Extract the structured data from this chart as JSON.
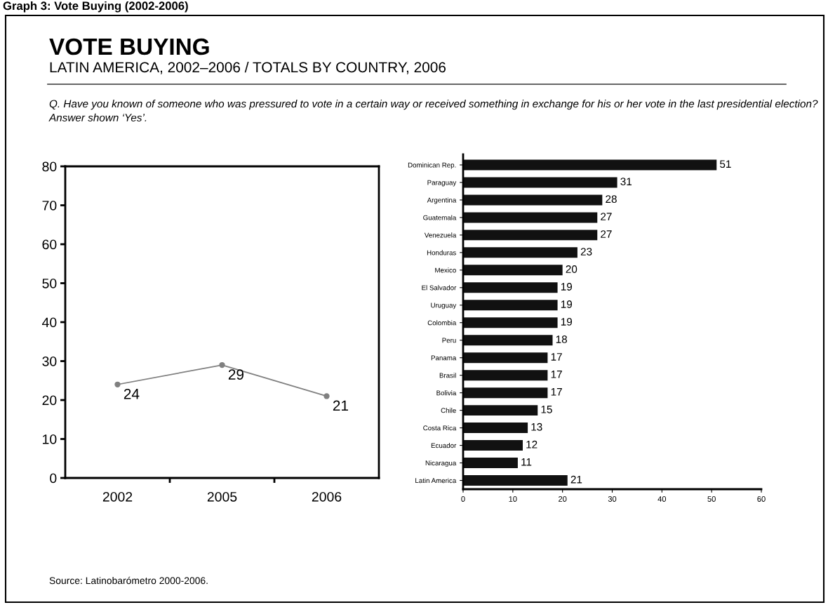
{
  "chart_data": [
    {
      "type": "line",
      "title": "VOTE BUYING",
      "subtitle": "LATIN AMERICA, 2002–2006 / TOTALS BY COUNTRY, 2006",
      "annotations": [
        "Graph 3: Vote Buying (2002-2006)",
        "Q. Have you known of someone who was pressured to vote in a certain way or received something in exchange for his or her vote in the last presidential election? Answer shown ‘Yes’.",
        "Source: Latinobarómetro 2000-2006."
      ],
      "categories": [
        "2002",
        "2005",
        "2006"
      ],
      "series": [
        {
          "color": "#808080",
          "values": [
            24,
            29,
            21
          ]
        }
      ],
      "ylim": [
        0,
        80
      ],
      "yticks": [
        0,
        10,
        20,
        30,
        40,
        50,
        60,
        70,
        80
      ],
      "marker": "circle",
      "line_style": "solid",
      "data_labels": true,
      "grid": false
    },
    {
      "type": "bar",
      "orientation": "horizontal",
      "categories": [
        "Dominican Rep.",
        "Paraguay",
        "Argentina",
        "Guatemala",
        "Venezuela",
        "Honduras",
        "Mexico",
        "El Salvador",
        "Uruguay",
        "Colombia",
        "Peru",
        "Panama",
        "Brasil",
        "Bolivia",
        "Chile",
        "Costa Rica",
        "Ecuador",
        "Nicaragua",
        "Latin America"
      ],
      "series": [
        {
          "color": "#111111",
          "values": [
            51,
            31,
            28,
            27,
            27,
            23,
            20,
            19,
            19,
            19,
            18,
            17,
            17,
            17,
            15,
            13,
            12,
            11,
            21
          ]
        }
      ],
      "xlim": [
        0,
        60
      ],
      "xticks": [
        0,
        10,
        20,
        30,
        40,
        50,
        60
      ],
      "data_labels": true,
      "grid": false
    }
  ]
}
